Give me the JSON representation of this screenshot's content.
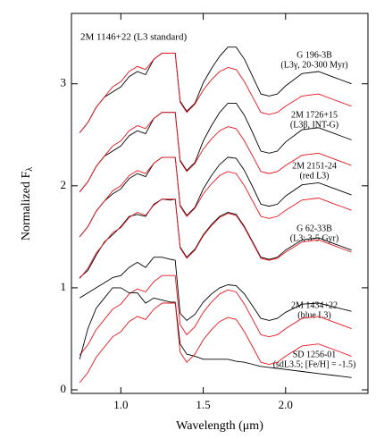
{
  "chart_data": {
    "type": "line",
    "y_label": "Normalized F",
    "y_label_subscript": "λ",
    "x_label": "Wavelength (μm)",
    "standard_label": "2M 1146+22 (L3 standard)",
    "standard_color": "#e8141c",
    "xlim": [
      0.7,
      2.5
    ],
    "ylim": [
      -0.035,
      3.69
    ],
    "xticks": [
      {
        "value": 1,
        "label": "1.0"
      },
      {
        "value": 1.5,
        "label": "1.5"
      },
      {
        "value": 2,
        "label": "2.0"
      }
    ],
    "yticks": [
      0,
      1,
      2,
      3
    ],
    "x": [
      0.75,
      0.8,
      0.85,
      0.9,
      0.95,
      1.0,
      1.05,
      1.1,
      1.15,
      1.2,
      1.25,
      1.3,
      1.33,
      1.36,
      1.4,
      1.45,
      1.5,
      1.55,
      1.6,
      1.65,
      1.7,
      1.75,
      1.8,
      1.85,
      1.9,
      1.95,
      2.0,
      2.1,
      2.2,
      2.3,
      2.4
    ],
    "series": [
      {
        "name": "G 196-3B",
        "note": "(L3γ, 20-300 Myr)",
        "color": "#000000",
        "values": [
          2.52,
          2.62,
          2.77,
          2.87,
          2.92,
          2.97,
          3.07,
          3.12,
          3.09,
          3.24,
          3.3,
          3.3,
          3.3,
          2.83,
          2.73,
          2.81,
          3.01,
          3.15,
          3.27,
          3.36,
          3.36,
          3.24,
          3.07,
          2.9,
          2.88,
          2.9,
          2.98,
          3.1,
          3.12,
          3.06,
          3.0
        ]
      },
      {
        "color": "#e8141c",
        "values": [
          2.52,
          2.62,
          2.77,
          2.87,
          2.97,
          3.02,
          3.12,
          3.17,
          3.14,
          3.24,
          3.3,
          3.3,
          3.3,
          2.82,
          2.72,
          2.8,
          2.94,
          3.04,
          3.12,
          3.16,
          3.14,
          3.02,
          2.87,
          2.72,
          2.7,
          2.72,
          2.78,
          2.88,
          2.9,
          2.84,
          2.78
        ]
      },
      {
        "name": "2M 1726+15",
        "note": "(L3β, INT-G)",
        "color": "#000000",
        "values": [
          1.94,
          2.04,
          2.19,
          2.29,
          2.34,
          2.39,
          2.49,
          2.54,
          2.51,
          2.66,
          2.72,
          2.72,
          2.72,
          2.25,
          2.15,
          2.23,
          2.44,
          2.59,
          2.72,
          2.81,
          2.81,
          2.69,
          2.52,
          2.34,
          2.32,
          2.34,
          2.43,
          2.55,
          2.57,
          2.51,
          2.45
        ]
      },
      {
        "color": "#e8141c",
        "values": [
          1.94,
          2.04,
          2.19,
          2.29,
          2.39,
          2.44,
          2.54,
          2.59,
          2.56,
          2.66,
          2.72,
          2.72,
          2.72,
          2.24,
          2.14,
          2.22,
          2.36,
          2.46,
          2.54,
          2.58,
          2.56,
          2.44,
          2.29,
          2.14,
          2.12,
          2.14,
          2.2,
          2.3,
          2.32,
          2.26,
          2.2
        ]
      },
      {
        "name": "2M 2151-24",
        "note": "(red L3)",
        "color": "#000000",
        "values": [
          1.5,
          1.6,
          1.75,
          1.85,
          1.92,
          1.97,
          2.07,
          2.12,
          2.09,
          2.22,
          2.28,
          2.28,
          2.28,
          1.81,
          1.71,
          1.79,
          1.97,
          2.1,
          2.21,
          2.28,
          2.27,
          2.15,
          1.99,
          1.82,
          1.8,
          1.82,
          1.9,
          2.01,
          2.03,
          1.97,
          1.91
        ]
      },
      {
        "color": "#e8141c",
        "values": [
          1.5,
          1.6,
          1.75,
          1.85,
          1.95,
          2.0,
          2.1,
          2.15,
          2.12,
          2.22,
          2.28,
          2.28,
          2.28,
          1.8,
          1.7,
          1.78,
          1.92,
          2.02,
          2.1,
          2.14,
          2.12,
          2.0,
          1.85,
          1.7,
          1.68,
          1.7,
          1.76,
          1.86,
          1.88,
          1.82,
          1.76
        ]
      },
      {
        "name": "G 62-33B",
        "note": "(L3; 3-5 Gyr)",
        "color": "#000000",
        "values": [
          1.1,
          1.17,
          1.32,
          1.45,
          1.52,
          1.6,
          1.7,
          1.72,
          1.7,
          1.82,
          1.87,
          1.86,
          1.87,
          1.4,
          1.3,
          1.38,
          1.52,
          1.62,
          1.7,
          1.74,
          1.72,
          1.6,
          1.45,
          1.3,
          1.28,
          1.3,
          1.37,
          1.47,
          1.49,
          1.43,
          1.37
        ]
      },
      {
        "color": "#e8141c",
        "values": [
          1.09,
          1.19,
          1.34,
          1.44,
          1.54,
          1.59,
          1.69,
          1.74,
          1.71,
          1.81,
          1.87,
          1.87,
          1.87,
          1.39,
          1.29,
          1.37,
          1.51,
          1.61,
          1.69,
          1.73,
          1.71,
          1.59,
          1.44,
          1.29,
          1.27,
          1.29,
          1.35,
          1.45,
          1.47,
          1.41,
          1.35
        ]
      },
      {
        "name": "2M 1434+22",
        "note": "(blue L3)",
        "color": "#000000",
        "values": [
          0.9,
          0.95,
          1.0,
          1.05,
          1.1,
          1.12,
          1.2,
          1.25,
          1.2,
          1.3,
          1.3,
          1.28,
          1.27,
          0.75,
          0.68,
          0.74,
          0.86,
          0.94,
          1.0,
          1.03,
          1.02,
          0.94,
          0.82,
          0.7,
          0.68,
          0.7,
          0.76,
          0.84,
          0.85,
          0.81,
          0.77
        ]
      },
      {
        "color": "#e8141c",
        "values": [
          0.34,
          0.44,
          0.59,
          0.69,
          0.79,
          0.84,
          0.94,
          0.99,
          0.96,
          1.06,
          1.12,
          1.12,
          1.12,
          0.64,
          0.54,
          0.62,
          0.76,
          0.86,
          0.94,
          0.98,
          0.96,
          0.84,
          0.69,
          0.54,
          0.52,
          0.54,
          0.6,
          0.7,
          0.72,
          0.66,
          0.6
        ]
      },
      {
        "name": "SD 1256-01",
        "note": "(sdL3.5; [Fe/H] = -1.5)",
        "color": "#000000",
        "values": [
          0.3,
          0.6,
          0.8,
          0.9,
          1.0,
          1.0,
          0.95,
          0.95,
          0.85,
          0.9,
          0.88,
          0.86,
          0.86,
          0.45,
          0.35,
          0.33,
          0.3,
          0.3,
          0.3,
          0.3,
          0.28,
          0.27,
          0.25,
          0.23,
          0.22,
          0.21,
          0.2,
          0.18,
          0.16,
          0.14,
          0.12
        ]
      },
      {
        "color": "#e8141c",
        "values": [
          0.07,
          0.17,
          0.32,
          0.42,
          0.52,
          0.57,
          0.67,
          0.72,
          0.69,
          0.79,
          0.85,
          0.85,
          0.85,
          0.37,
          0.27,
          0.35,
          0.49,
          0.59,
          0.67,
          0.71,
          0.69,
          0.57,
          0.42,
          0.27,
          0.25,
          0.27,
          0.33,
          0.43,
          0.45,
          0.39,
          0.33
        ]
      }
    ]
  }
}
